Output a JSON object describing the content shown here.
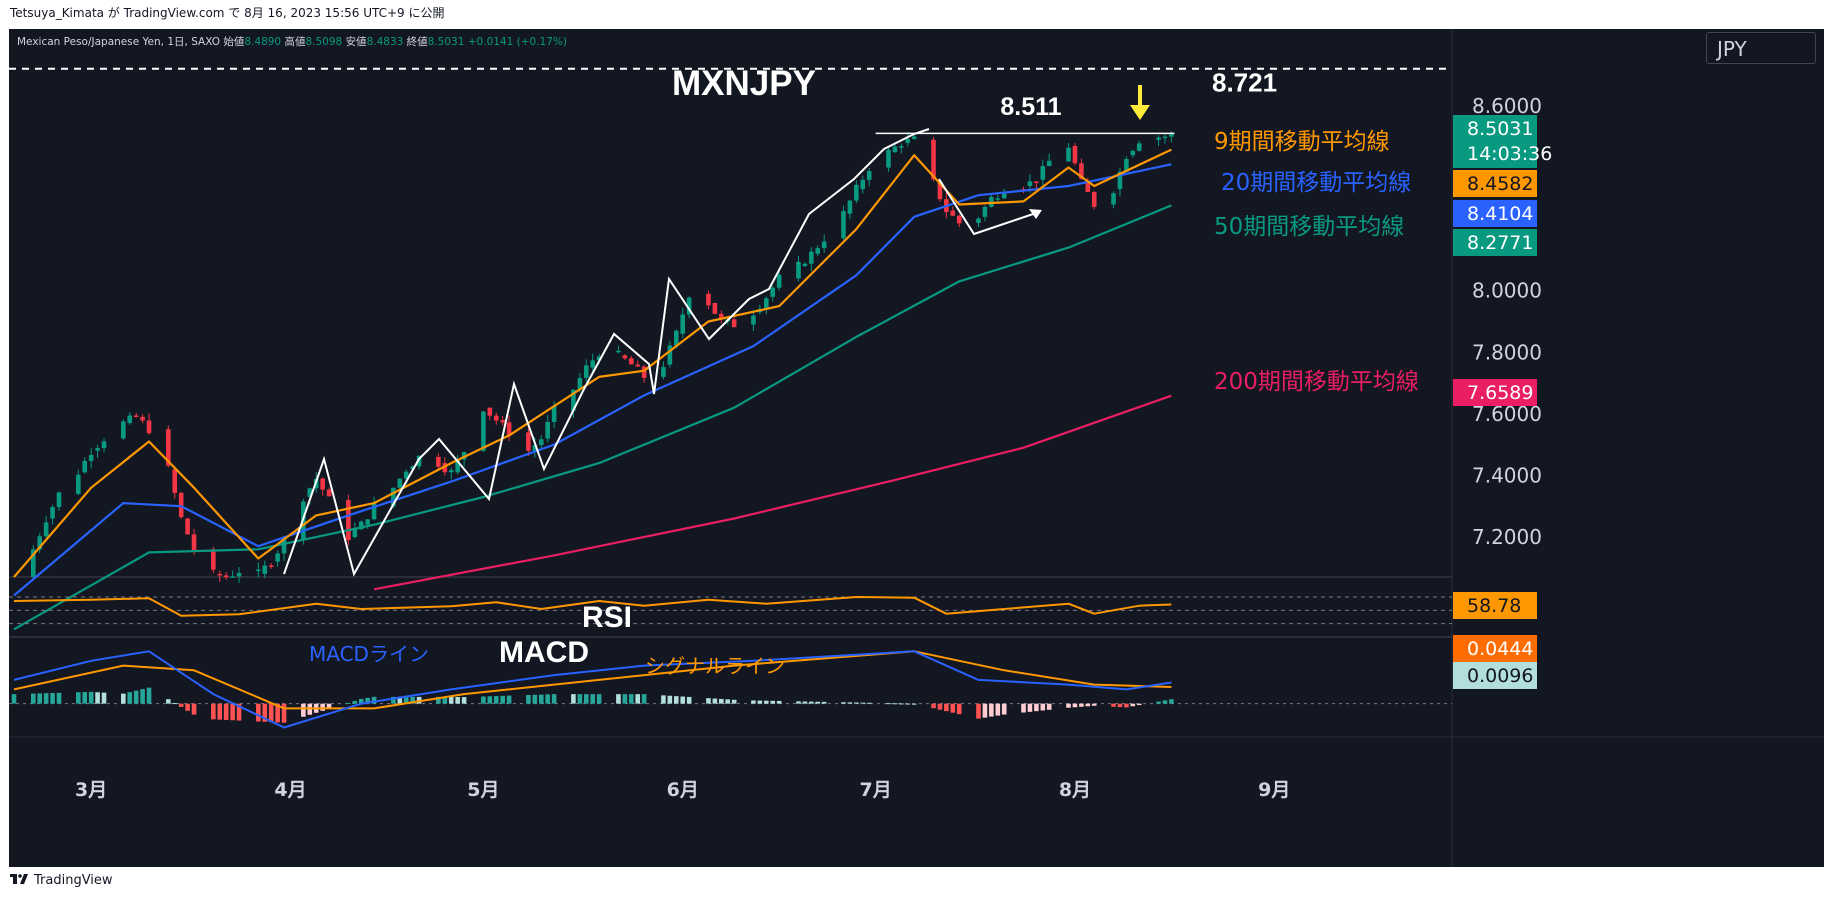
{
  "caption": "Tetsuya_Kimata が TradingView.com で 8月 16, 2023 15:56 UTC+9 に公開",
  "legend": {
    "symbol": "Mexican Peso/Japanese Yen, 1日, SAXO",
    "open_label": "始値",
    "open": "8.4890",
    "high_label": "高値",
    "high": "8.5098",
    "low_label": "安値",
    "low": "8.4833",
    "close_label": "終値",
    "close": "8.5031",
    "change": "+0.0141 (+0.17%)"
  },
  "currency": "JPY",
  "footer_brand": "TradingView",
  "colors": {
    "background": "#131722",
    "up": "#089981",
    "down": "#f23645",
    "ma9": "#ff9800",
    "ma20": "#2962ff",
    "ma50": "#089981",
    "ma200": "#e91e63",
    "macd": "#2962ff",
    "signal": "#ff9800",
    "rsi": "#ff9800"
  },
  "chart_data": [
    {
      "type": "candlestick",
      "title": "MXNJPY",
      "y_range": [
        7.07,
        8.85
      ],
      "y_ticks": [
        "8.6000",
        "8.0000",
        "7.8000",
        "7.6000",
        "7.4000",
        "7.2000"
      ],
      "x_ticks": [
        "3月",
        "4月",
        "5月",
        "6月",
        "7月",
        "8月",
        "9月"
      ],
      "current_price": "8.5031",
      "countdown": "14:03:36",
      "annotations": {
        "dashed_level": "8.721",
        "resistance_level": "8.511",
        "ma9_label": "9期間移動平均線",
        "ma20_label": "20期間移動平均線",
        "ma50_label": "50期間移動平均線",
        "ma200_label": "200期間移動平均線"
      },
      "ma_values": {
        "ma9": "8.4582",
        "ma20": "8.4104",
        "ma50": "8.2771",
        "ma200": "7.6589"
      },
      "close_path": [
        [
          "2023-02-17",
          7.07
        ],
        [
          "2023-02-20",
          7.16
        ],
        [
          "2023-02-22",
          7.26
        ],
        [
          "2023-02-24",
          7.34
        ],
        [
          "2023-02-27",
          7.41
        ],
        [
          "2023-03-01",
          7.48
        ],
        [
          "2023-03-03",
          7.52
        ],
        [
          "2023-03-06",
          7.57
        ],
        [
          "2023-03-08",
          7.59
        ],
        [
          "2023-03-10",
          7.55
        ],
        [
          "2023-03-13",
          7.42
        ],
        [
          "2023-03-15",
          7.26
        ],
        [
          "2023-03-17",
          7.16
        ],
        [
          "2023-03-20",
          7.08
        ],
        [
          "2023-03-22",
          7.07
        ],
        [
          "2023-03-24",
          7.09
        ],
        [
          "2023-03-27",
          7.08
        ],
        [
          "2023-03-29",
          7.12
        ],
        [
          "2023-03-31",
          7.19
        ],
        [
          "2023-04-03",
          7.33
        ],
        [
          "2023-04-05",
          7.39
        ],
        [
          "2023-04-07",
          7.32
        ],
        [
          "2023-04-10",
          7.2
        ],
        [
          "2023-04-12",
          7.24
        ],
        [
          "2023-04-14",
          7.3
        ],
        [
          "2023-04-17",
          7.36
        ],
        [
          "2023-04-19",
          7.42
        ],
        [
          "2023-04-21",
          7.46
        ],
        [
          "2023-04-24",
          7.44
        ],
        [
          "2023-04-26",
          7.41
        ],
        [
          "2023-04-28",
          7.48
        ],
        [
          "2023-05-01",
          7.62
        ],
        [
          "2023-05-03",
          7.58
        ],
        [
          "2023-05-05",
          7.54
        ],
        [
          "2023-05-08",
          7.48
        ],
        [
          "2023-05-10",
          7.52
        ],
        [
          "2023-05-12",
          7.61
        ],
        [
          "2023-05-15",
          7.68
        ],
        [
          "2023-05-17",
          7.75
        ],
        [
          "2023-05-19",
          7.8
        ],
        [
          "2023-05-22",
          7.79
        ],
        [
          "2023-05-24",
          7.76
        ],
        [
          "2023-05-26",
          7.72
        ],
        [
          "2023-05-29",
          7.76
        ],
        [
          "2023-05-31",
          7.86
        ],
        [
          "2023-06-02",
          7.99
        ],
        [
          "2023-06-05",
          7.96
        ],
        [
          "2023-06-07",
          7.9
        ],
        [
          "2023-06-09",
          7.89
        ],
        [
          "2023-06-12",
          7.93
        ],
        [
          "2023-06-14",
          7.98
        ],
        [
          "2023-06-16",
          8.04
        ],
        [
          "2023-06-19",
          8.08
        ],
        [
          "2023-06-21",
          8.12
        ],
        [
          "2023-06-23",
          8.17
        ],
        [
          "2023-06-26",
          8.25
        ],
        [
          "2023-06-28",
          8.33
        ],
        [
          "2023-06-30",
          8.4
        ],
        [
          "2023-07-03",
          8.45
        ],
        [
          "2023-07-05",
          8.48
        ],
        [
          "2023-07-07",
          8.49
        ],
        [
          "2023-07-10",
          8.35
        ],
        [
          "2023-07-12",
          8.26
        ],
        [
          "2023-07-14",
          8.22
        ],
        [
          "2023-07-17",
          8.24
        ],
        [
          "2023-07-19",
          8.3
        ],
        [
          "2023-07-21",
          8.33
        ],
        [
          "2023-07-24",
          8.34
        ],
        [
          "2023-07-26",
          8.36
        ],
        [
          "2023-07-28",
          8.42
        ],
        [
          "2023-07-31",
          8.47
        ],
        [
          "2023-08-02",
          8.35
        ],
        [
          "2023-08-04",
          8.28
        ],
        [
          "2023-08-07",
          8.33
        ],
        [
          "2023-08-09",
          8.44
        ],
        [
          "2023-08-11",
          8.49
        ],
        [
          "2023-08-14",
          8.5
        ],
        [
          "2023-08-16",
          8.5031
        ]
      ],
      "ma_lines": {
        "ma9": [
          [
            "2023-02-17",
            7.07
          ],
          [
            "2023-03-01",
            7.36
          ],
          [
            "2023-03-10",
            7.51
          ],
          [
            "2023-03-17",
            7.36
          ],
          [
            "2023-03-27",
            7.13
          ],
          [
            "2023-04-05",
            7.27
          ],
          [
            "2023-04-14",
            7.31
          ],
          [
            "2023-04-26",
            7.44
          ],
          [
            "2023-05-05",
            7.53
          ],
          [
            "2023-05-19",
            7.72
          ],
          [
            "2023-05-26",
            7.74
          ],
          [
            "2023-06-05",
            7.9
          ],
          [
            "2023-06-16",
            7.95
          ],
          [
            "2023-06-28",
            8.2
          ],
          [
            "2023-07-07",
            8.44
          ],
          [
            "2023-07-14",
            8.28
          ],
          [
            "2023-07-24",
            8.29
          ],
          [
            "2023-07-31",
            8.4
          ],
          [
            "2023-08-04",
            8.34
          ],
          [
            "2023-08-16",
            8.4582
          ]
        ],
        "ma20": [
          [
            "2023-02-17",
            7.01
          ],
          [
            "2023-03-06",
            7.31
          ],
          [
            "2023-03-15",
            7.3
          ],
          [
            "2023-03-27",
            7.17
          ],
          [
            "2023-04-10",
            7.27
          ],
          [
            "2023-04-26",
            7.38
          ],
          [
            "2023-05-12",
            7.5
          ],
          [
            "2023-05-26",
            7.66
          ],
          [
            "2023-06-12",
            7.82
          ],
          [
            "2023-06-28",
            8.05
          ],
          [
            "2023-07-07",
            8.24
          ],
          [
            "2023-07-17",
            8.31
          ],
          [
            "2023-07-31",
            8.34
          ],
          [
            "2023-08-16",
            8.4104
          ]
        ],
        "ma50": [
          [
            "2023-02-17",
            6.9
          ],
          [
            "2023-03-10",
            7.15
          ],
          [
            "2023-03-27",
            7.16
          ],
          [
            "2023-04-14",
            7.24
          ],
          [
            "2023-05-01",
            7.33
          ],
          [
            "2023-05-19",
            7.44
          ],
          [
            "2023-06-09",
            7.62
          ],
          [
            "2023-06-28",
            7.85
          ],
          [
            "2023-07-14",
            8.03
          ],
          [
            "2023-07-31",
            8.14
          ],
          [
            "2023-08-16",
            8.2771
          ]
        ],
        "ma200": [
          [
            "2023-04-14",
            7.03
          ],
          [
            "2023-05-12",
            7.14
          ],
          [
            "2023-06-09",
            7.26
          ],
          [
            "2023-07-03",
            7.38
          ],
          [
            "2023-07-24",
            7.49
          ],
          [
            "2023-08-16",
            7.6589
          ]
        ]
      }
    },
    {
      "type": "line",
      "title": "RSI",
      "current_value": "58.78",
      "levels": [
        70,
        50,
        30
      ],
      "values": [
        [
          "2023-02-17",
          64
        ],
        [
          "2023-03-01",
          66
        ],
        [
          "2023-03-10",
          68
        ],
        [
          "2023-03-15",
          42
        ],
        [
          "2023-03-24",
          44
        ],
        [
          "2023-04-05",
          60
        ],
        [
          "2023-04-12",
          52
        ],
        [
          "2023-04-26",
          56
        ],
        [
          "2023-05-03",
          62
        ],
        [
          "2023-05-10",
          52
        ],
        [
          "2023-05-19",
          64
        ],
        [
          "2023-05-26",
          57
        ],
        [
          "2023-06-05",
          66
        ],
        [
          "2023-06-14",
          60
        ],
        [
          "2023-06-28",
          70
        ],
        [
          "2023-07-07",
          69
        ],
        [
          "2023-07-12",
          45
        ],
        [
          "2023-07-21",
          52
        ],
        [
          "2023-07-31",
          60
        ],
        [
          "2023-08-04",
          45
        ],
        [
          "2023-08-11",
          57
        ],
        [
          "2023-08-16",
          58.78
        ]
      ]
    },
    {
      "type": "line+histogram",
      "title": "MACD",
      "macd_label": "MACDライン",
      "signal_label": "シグナルライン",
      "current_macd": "0.0444",
      "current_histogram": "0.0096",
      "macd": [
        [
          "2023-02-17",
          0.05
        ],
        [
          "2023-03-01",
          0.09
        ],
        [
          "2023-03-10",
          0.11
        ],
        [
          "2023-03-20",
          0.02
        ],
        [
          "2023-03-31",
          -0.05
        ],
        [
          "2023-04-12",
          0.0
        ],
        [
          "2023-04-26",
          0.03
        ],
        [
          "2023-05-12",
          0.06
        ],
        [
          "2023-05-26",
          0.08
        ],
        [
          "2023-06-12",
          0.09
        ],
        [
          "2023-07-07",
          0.11
        ],
        [
          "2023-07-17",
          0.05
        ],
        [
          "2023-07-31",
          0.04
        ],
        [
          "2023-08-09",
          0.03
        ],
        [
          "2023-08-16",
          0.0444
        ]
      ],
      "signal": [
        [
          "2023-02-17",
          0.03
        ],
        [
          "2023-03-06",
          0.08
        ],
        [
          "2023-03-17",
          0.07
        ],
        [
          "2023-03-31",
          -0.01
        ],
        [
          "2023-04-14",
          -0.01
        ],
        [
          "2023-04-28",
          0.02
        ],
        [
          "2023-05-19",
          0.05
        ],
        [
          "2023-06-09",
          0.08
        ],
        [
          "2023-07-07",
          0.11
        ],
        [
          "2023-07-21",
          0.07
        ],
        [
          "2023-08-04",
          0.04
        ],
        [
          "2023-08-16",
          0.035
        ]
      ],
      "value_range": [
        -0.07,
        0.14
      ]
    }
  ]
}
